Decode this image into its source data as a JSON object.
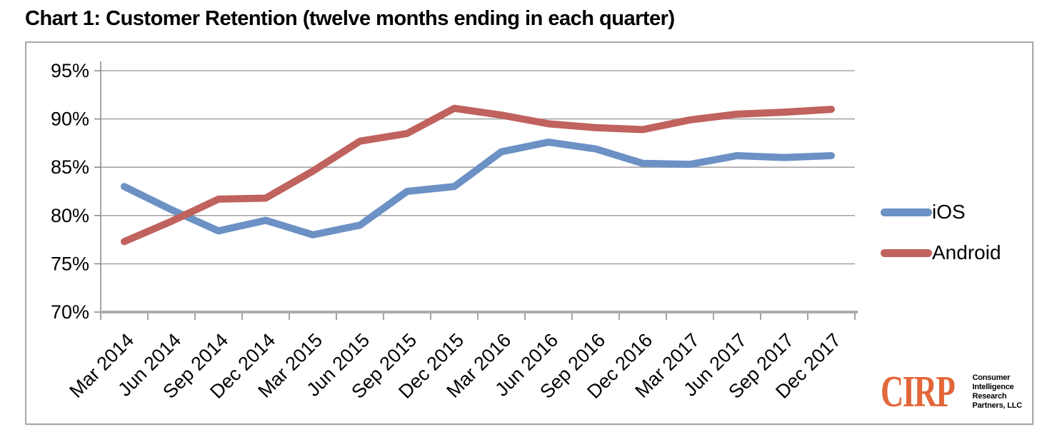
{
  "title": "Chart 1: Customer Retention (twelve months ending in each quarter)",
  "chart_data": {
    "type": "line",
    "x": [
      "Mar 2014",
      "Jun 2014",
      "Sep 2014",
      "Dec 2014",
      "Mar 2015",
      "Jun 2015",
      "Sep 2015",
      "Dec 2015",
      "Mar 2016",
      "Jun 2016",
      "Sep 2016",
      "Dec 2016",
      "Mar 2017",
      "Jun 2017",
      "Sep 2017",
      "Dec 2017"
    ],
    "series": [
      {
        "name": "iOS",
        "color": "#6c91c4",
        "values": [
          83.0,
          80.6,
          78.4,
          79.5,
          78.0,
          79.0,
          82.5,
          83.0,
          86.6,
          87.6,
          86.9,
          85.4,
          85.3,
          86.2,
          86.0,
          86.2
        ]
      },
      {
        "name": "Android",
        "color": "#c0625d",
        "values": [
          77.3,
          79.4,
          81.7,
          81.8,
          84.6,
          87.7,
          88.5,
          91.1,
          90.4,
          89.5,
          89.1,
          88.9,
          89.9,
          90.5,
          90.7,
          91.0
        ]
      }
    ],
    "ylim": [
      70,
      95
    ],
    "yticks": [
      "95%",
      "90%",
      "85%",
      "80%",
      "75%",
      "70%"
    ],
    "xlabel": "",
    "ylabel": "",
    "grid": true,
    "legend_position": "right"
  },
  "logo": {
    "acronym": "CIRP",
    "lines": [
      "Consumer",
      "Intelligence",
      "Research",
      "Partners, LLC"
    ],
    "accent_color": "#e2673a"
  },
  "style_colors": {
    "gridline": "#a6a6a6",
    "axis": "#ababab",
    "tick": "#8c8c8c",
    "label_text": "#000000"
  }
}
